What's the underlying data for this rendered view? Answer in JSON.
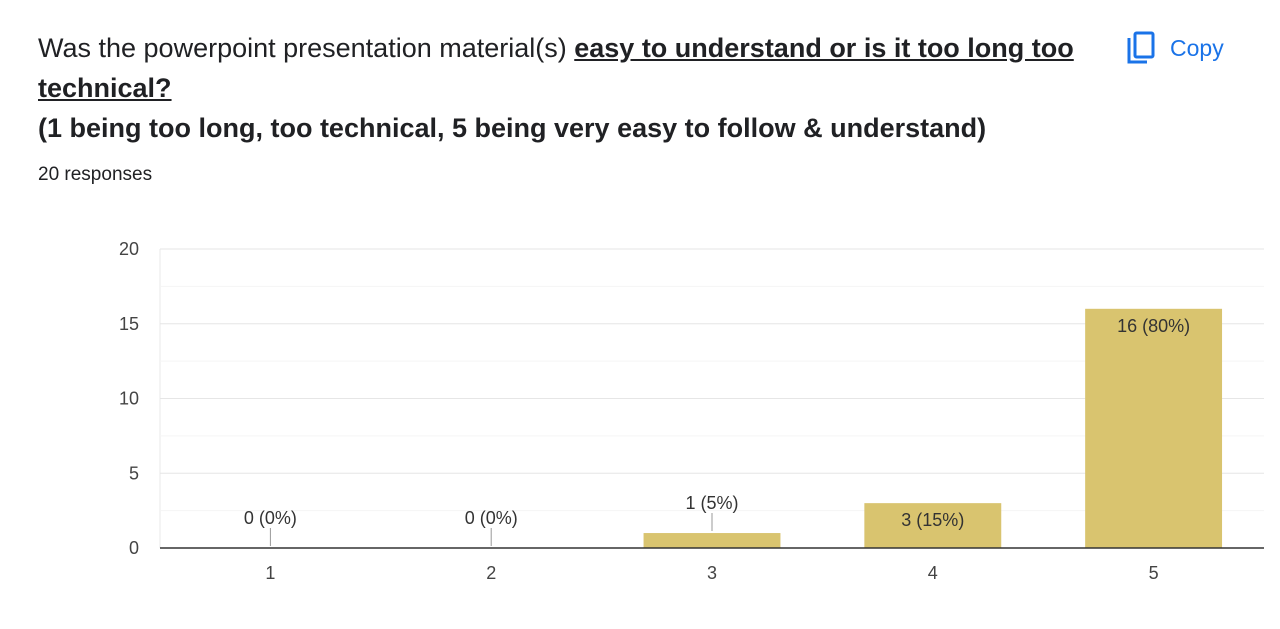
{
  "question": {
    "lead": "Was the powerpoint presentation material(s) ",
    "emphasis": "easy to understand or is it too long  too technical?",
    "scale_note": "(1 being too long, too technical, 5 being very easy to follow & understand)"
  },
  "copy_button": {
    "label": "Copy",
    "icon": "copy-icon",
    "color": "#1a73e8"
  },
  "responses_text": "20 responses",
  "chart_data": {
    "type": "bar",
    "categories": [
      "1",
      "2",
      "3",
      "4",
      "5"
    ],
    "values": [
      0,
      0,
      1,
      3,
      16
    ],
    "data_labels": [
      "0 (0%)",
      "0 (0%)",
      "1 (5%)",
      "3 (15%)",
      "16 (80%)"
    ],
    "ylim": [
      0,
      20
    ],
    "yticks": [
      0,
      5,
      10,
      15,
      20
    ],
    "title": "",
    "xlabel": "",
    "ylabel": "",
    "grid": true,
    "bar_color": "#d9c46f"
  }
}
